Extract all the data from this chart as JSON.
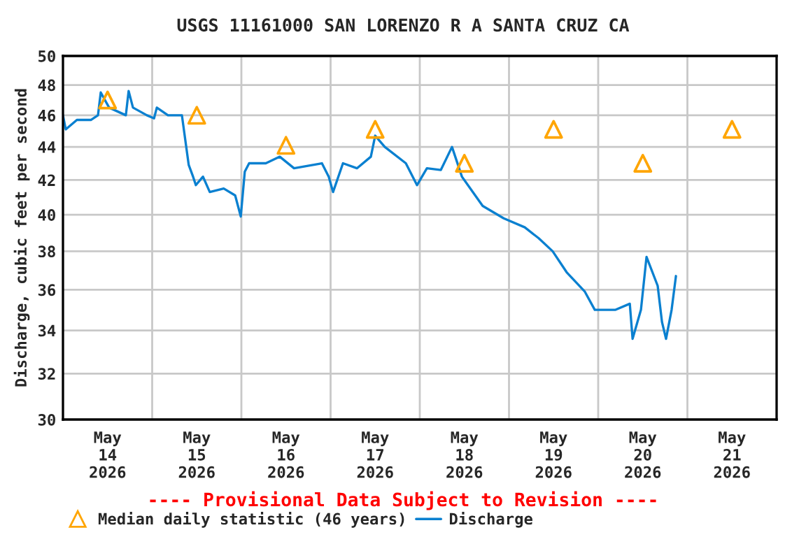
{
  "chart_data": {
    "type": "line",
    "title": "USGS 11161000 SAN LORENZO R A SANTA CRUZ CA",
    "ylabel": "Discharge, cubic feet per second",
    "annotations": [
      "---- Provisional Data Subject to Revision ----"
    ],
    "log": "y",
    "ylim": [
      30,
      50
    ],
    "yticks": [
      30,
      32,
      34,
      36,
      38,
      40,
      42,
      44,
      46,
      48,
      50
    ],
    "xlim": [
      "2026-05-14T00:00",
      "2026-05-22T00:00"
    ],
    "xticks": [
      {
        "value": "2026-05-14T12:00",
        "label": "May\n14\n2026"
      },
      {
        "value": "2026-05-15T00:00",
        "label": null
      },
      {
        "value": "2026-05-15T12:00",
        "label": "May\n15\n2026"
      },
      {
        "value": "2026-05-16T00:00",
        "label": null
      },
      {
        "value": "2026-05-16T12:00",
        "label": "May\n16\n2026"
      },
      {
        "value": "2026-05-17T00:00",
        "label": null
      },
      {
        "value": "2026-05-17T12:00",
        "label": "May\n17\n2026"
      },
      {
        "value": "2026-05-18T00:00",
        "label": null
      },
      {
        "value": "2026-05-18T12:00",
        "label": "May\n18\n2026"
      },
      {
        "value": "2026-05-19T00:00",
        "label": null
      },
      {
        "value": "2026-05-19T12:00",
        "label": "May\n19\n2026"
      },
      {
        "value": "2026-05-20T00:00",
        "label": null
      },
      {
        "value": "2026-05-20T12:00",
        "label": "May\n20\n2026"
      },
      {
        "value": "2026-05-21T00:00",
        "label": null
      },
      {
        "value": "2026-05-21T12:00",
        "label": "May\n21\n2026"
      }
    ],
    "grid": true,
    "legend": "bottom",
    "series": [
      {
        "name": "Median daily statistic (46 years)",
        "type": "scatter",
        "marker": "triangle",
        "color": "#ffa500",
        "x": [
          "2026-05-14T12:00",
          "2026-05-15T12:00",
          "2026-05-16T12:00",
          "2026-05-17T12:00",
          "2026-05-18T12:00",
          "2026-05-19T12:00",
          "2026-05-20T12:00",
          "2026-05-21T12:00"
        ],
        "values": [
          47.0,
          46.0,
          44.1,
          45.1,
          43.0,
          45.1,
          43.0,
          45.1
        ]
      },
      {
        "name": "Discharge",
        "color": "#0a80d0",
        "marker": "none",
        "x": [
          "2026-05-14T00:00",
          "2026-05-14T00:45",
          "2026-05-14T03:45",
          "2026-05-14T07:30",
          "2026-05-14T09:25",
          "2026-05-14T10:10",
          "2026-05-14T12:25",
          "2026-05-14T16:55",
          "2026-05-14T17:40",
          "2026-05-14T18:50",
          "2026-05-14T22:35",
          "2026-05-15T00:30",
          "2026-05-15T01:15",
          "2026-05-15T04:15",
          "2026-05-15T08:00",
          "2026-05-15T08:45",
          "2026-05-15T09:50",
          "2026-05-15T11:00",
          "2026-05-15T11:45",
          "2026-05-15T13:40",
          "2026-05-15T15:30",
          "2026-05-15T19:15",
          "2026-05-15T22:20",
          "2026-05-15T23:50",
          "2026-05-16T00:55",
          "2026-05-16T02:05",
          "2026-05-16T06:35",
          "2026-05-16T10:20",
          "2026-05-16T14:10",
          "2026-05-16T21:40",
          "2026-05-16T23:30",
          "2026-05-17T00:40",
          "2026-05-17T03:20",
          "2026-05-17T07:05",
          "2026-05-17T10:50",
          "2026-05-17T12:00",
          "2026-05-17T14:35",
          "2026-05-17T20:15",
          "2026-05-17T23:15",
          "2026-05-18T01:55",
          "2026-05-18T05:40",
          "2026-05-18T08:40",
          "2026-05-18T11:20",
          "2026-05-18T16:55",
          "2026-05-18T22:35",
          "2026-05-19T04:15",
          "2026-05-19T08:00",
          "2026-05-19T11:45",
          "2026-05-19T15:30",
          "2026-05-19T20:25",
          "2026-05-19T23:05",
          "2026-05-20T04:40",
          "2026-05-20T08:30",
          "2026-05-20T09:15",
          "2026-05-20T11:30",
          "2026-05-20T13:00",
          "2026-05-20T16:00",
          "2026-05-20T17:10",
          "2026-05-20T18:15",
          "2026-05-20T19:45",
          "2026-05-20T20:55"
        ],
        "values": [
          46.0,
          45.1,
          45.7,
          45.7,
          46.0,
          47.5,
          46.5,
          46.0,
          47.6,
          46.5,
          46.0,
          45.8,
          46.5,
          46.0,
          46.0,
          44.7,
          42.9,
          42.2,
          41.7,
          42.2,
          41.3,
          41.5,
          41.1,
          39.9,
          42.5,
          43.0,
          43.0,
          43.4,
          42.7,
          43.0,
          42.2,
          41.3,
          43.0,
          42.7,
          43.4,
          44.7,
          44.0,
          43.0,
          41.7,
          42.7,
          42.6,
          44.0,
          42.2,
          40.5,
          39.8,
          39.3,
          38.7,
          38.0,
          36.9,
          35.9,
          35.0,
          35.0,
          35.3,
          33.6,
          35.0,
          37.7,
          36.2,
          34.4,
          33.6,
          35.0,
          36.7
        ]
      }
    ]
  }
}
